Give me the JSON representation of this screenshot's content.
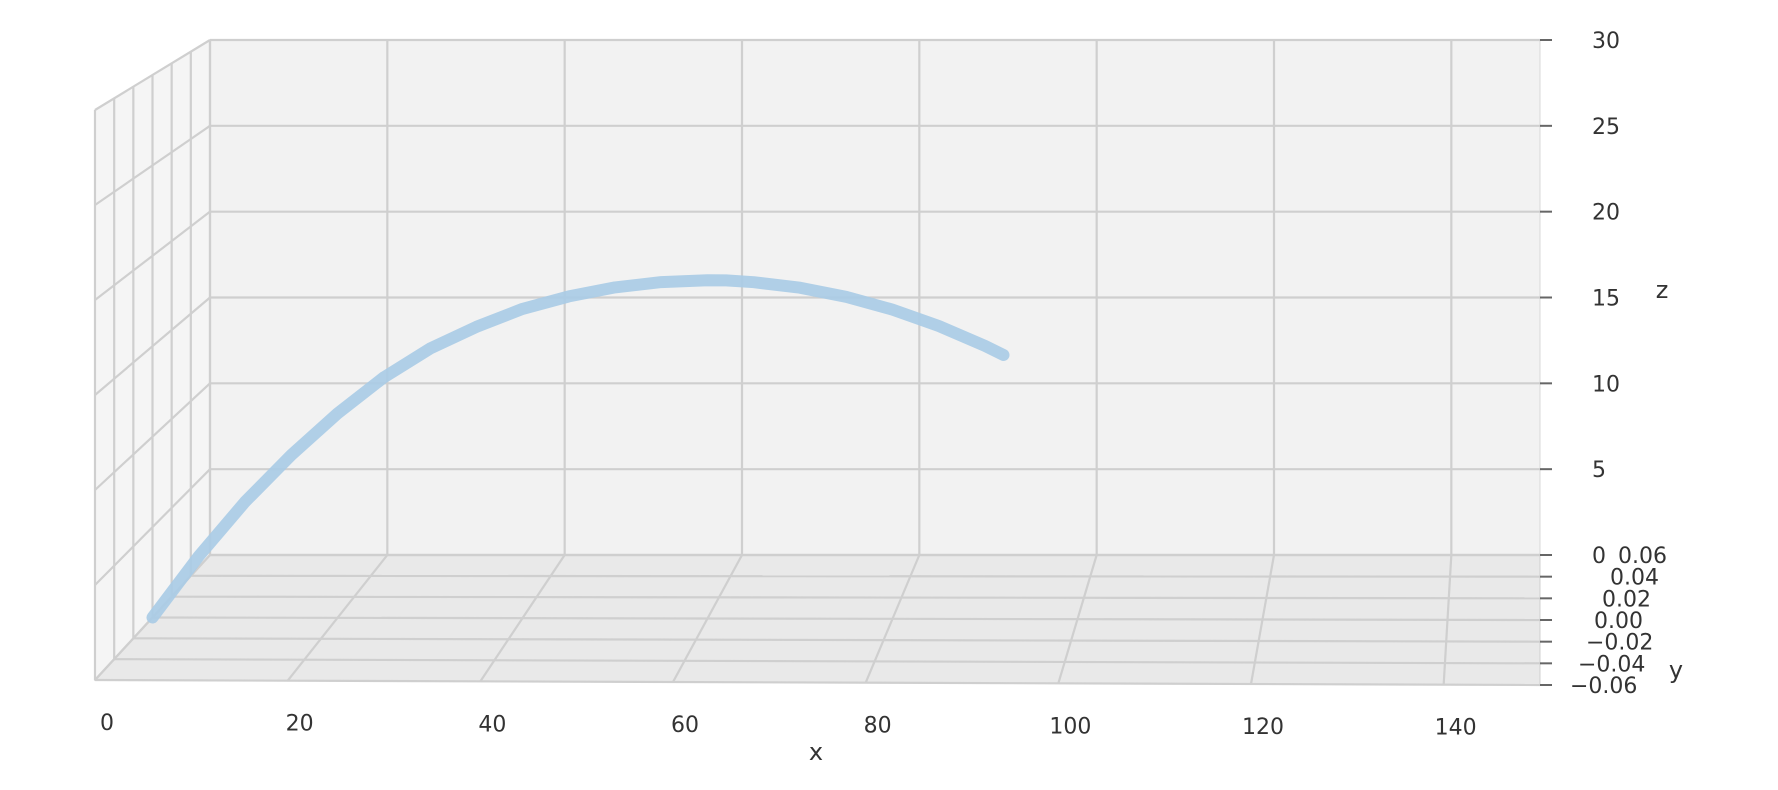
{
  "chart_data": {
    "type": "line3d",
    "title": "",
    "xlabel": "x",
    "ylabel": "y",
    "zlabel": "z",
    "xlim": [
      0,
      150
    ],
    "ylim": [
      -0.06,
      0.06
    ],
    "zlim": [
      0,
      30
    ],
    "x_ticks": [
      0,
      20,
      40,
      60,
      80,
      100,
      120,
      140
    ],
    "x_tick_labels": [
      "0",
      "20",
      "40",
      "60",
      "80",
      "100",
      "120",
      "140"
    ],
    "z_ticks": [
      0,
      5,
      10,
      15,
      20,
      25,
      30
    ],
    "z_tick_labels": [
      "0",
      "5",
      "10",
      "15",
      "20",
      "25",
      "30"
    ],
    "y_ticks": [
      -0.06,
      -0.04,
      -0.02,
      0.0,
      0.02,
      0.04,
      0.06
    ],
    "y_tick_labels": [
      "−0.06",
      "−0.04",
      "−0.02",
      "0.00",
      "0.02",
      "0.04",
      "0.06"
    ],
    "grid": true,
    "series": [
      {
        "color": "#a9cbe6",
        "x": [
          0,
          5,
          10,
          15,
          20,
          25,
          30,
          35,
          40,
          45,
          50,
          55,
          60,
          62,
          65,
          70,
          75,
          80,
          85,
          90,
          92
        ],
        "y": [
          0,
          0,
          0,
          0,
          0,
          0,
          0,
          0,
          0,
          0,
          0,
          0,
          0,
          0,
          0,
          0,
          0,
          0,
          0,
          0,
          0
        ],
        "z": [
          0,
          3.4,
          6.4,
          9.0,
          11.3,
          13.3,
          14.9,
          16.1,
          17.1,
          17.8,
          18.3,
          18.6,
          18.7,
          18.7,
          18.6,
          18.3,
          17.8,
          17.1,
          16.2,
          15.1,
          14.6
        ]
      }
    ]
  }
}
